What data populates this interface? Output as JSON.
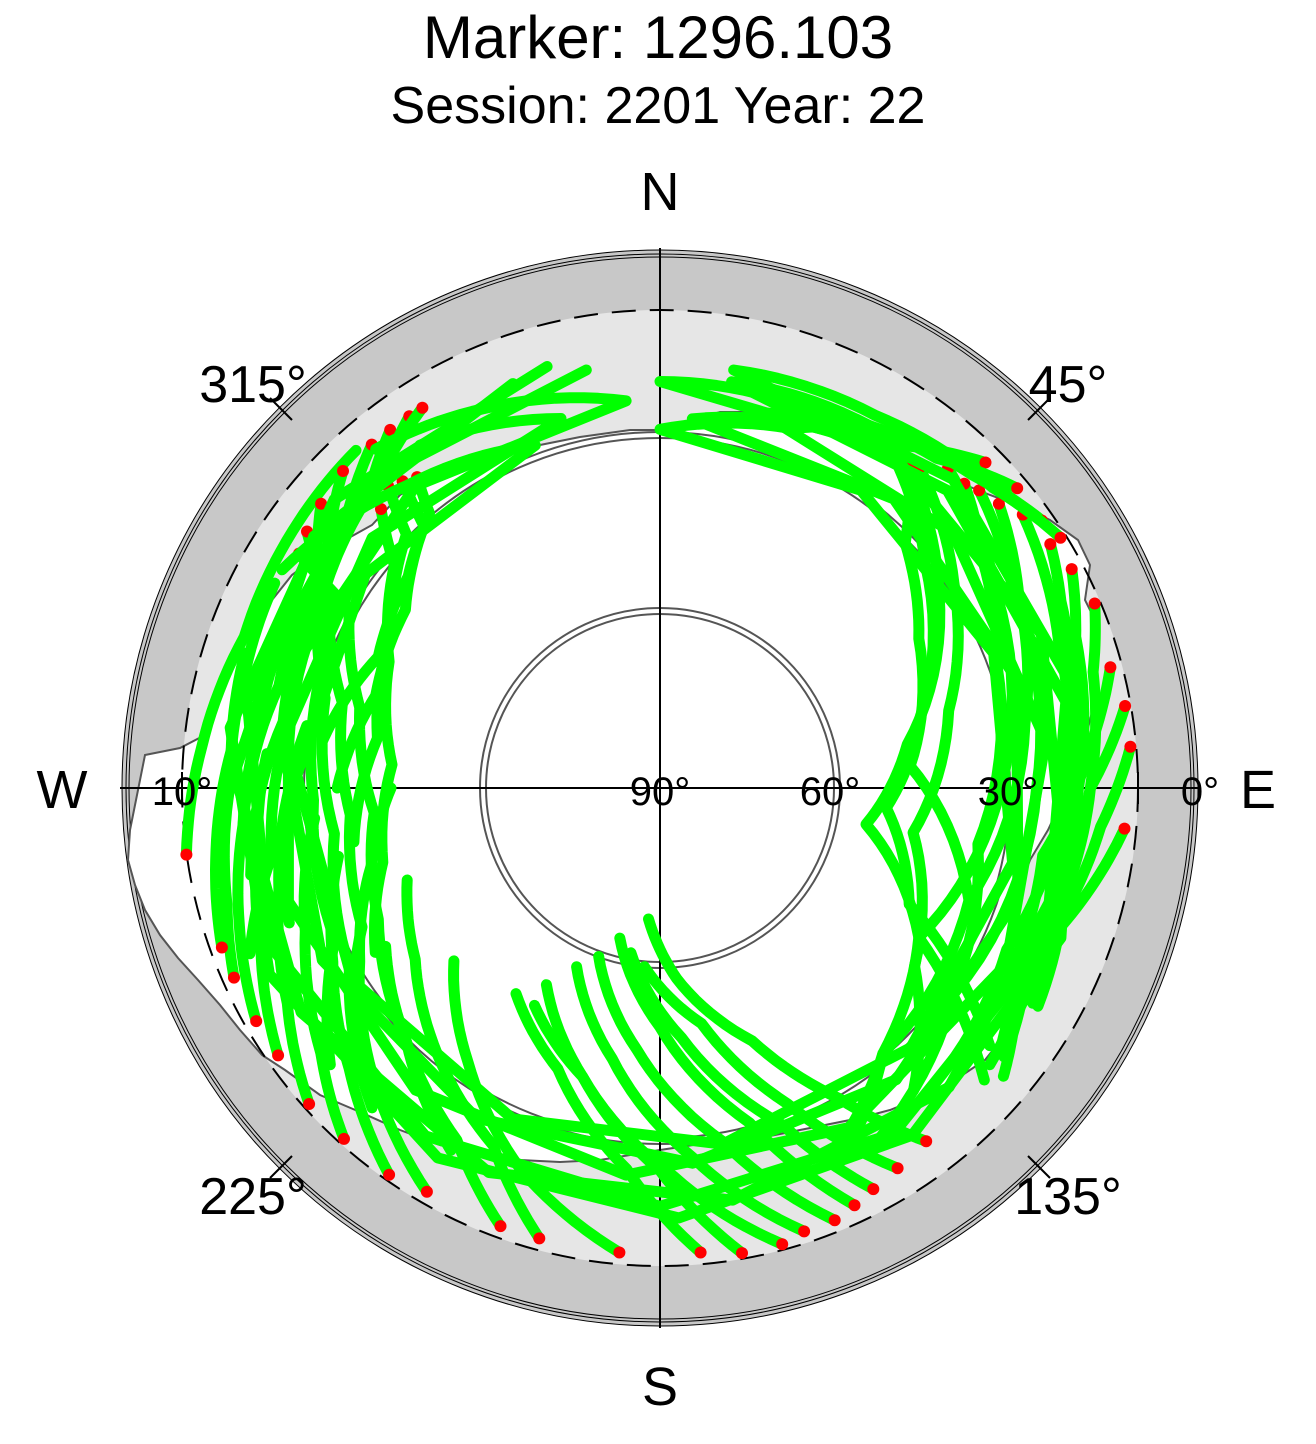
{
  "title": "Marker: 1296.103",
  "subtitle": "Session: 2201 Year: 22",
  "chart_data": {
    "type": "polar-sky-plot",
    "title": "Marker: 1296.103",
    "subtitle": "Session: 2201 Year: 22",
    "cardinals": {
      "north": "N",
      "east": "E",
      "south": "S",
      "west": "W"
    },
    "azimuth_ticks": [
      "45°",
      "135°",
      "225°",
      "315°"
    ],
    "elevation_ticks": [
      "10°",
      "90°",
      "60°",
      "30°",
      "0°"
    ],
    "elevation_range": [
      0,
      90
    ],
    "elevation_mask_deg": 10,
    "colors": {
      "track": "#00ff00",
      "track_endpoint": "#ff0000",
      "outer_ring": "#c8c8c8",
      "obstruction_area": "#e6e6e6",
      "open_sky": "#ffffff"
    },
    "elevation_circles_shown": [
      10,
      30,
      60
    ],
    "tracks": [
      {
        "az": [
          35,
          50,
          75,
          95,
          115,
          128
        ],
        "el": [
          22,
          32,
          45,
          52,
          44,
          20
        ]
      },
      {
        "az": [
          36,
          55,
          80,
          100,
          120,
          132
        ],
        "el": [
          21,
          33,
          48,
          55,
          40,
          17
        ]
      },
      {
        "az": [
          38,
          45,
          60,
          85,
          110
        ],
        "el": [
          22,
          32,
          40,
          48,
          35
        ]
      },
      {
        "az": [
          39,
          55,
          75,
          100,
          125,
          140
        ],
        "el": [
          21,
          30,
          40,
          47,
          38,
          24
        ]
      },
      {
        "az": [
          42,
          60,
          90,
          120,
          140,
          155
        ],
        "el": [
          18,
          25,
          33,
          40,
          32,
          20
        ]
      },
      {
        "az": [
          45,
          55,
          70,
          100,
          135
        ],
        "el": [
          18,
          24,
          30,
          36,
          28
        ]
      },
      {
        "az": [
          47,
          60,
          90,
          125,
          150
        ],
        "el": [
          17,
          22,
          27,
          30,
          20
        ]
      },
      {
        "az": [
          50,
          62,
          80,
          110,
          140,
          155
        ],
        "el": [
          16,
          22,
          28,
          35,
          32,
          22
        ]
      },
      {
        "az": [
          53,
          70,
          90,
          115,
          140
        ],
        "el": [
          14,
          19,
          22,
          26,
          22
        ]
      },
      {
        "az": [
          58,
          65,
          80,
          100,
          125
        ],
        "el": [
          13,
          16,
          20,
          22,
          19
        ]
      },
      {
        "az": [
          62,
          70,
          90,
          110,
          130
        ],
        "el": [
          12,
          16,
          20,
          22,
          18
        ]
      },
      {
        "az": [
          67,
          75,
          90,
          105,
          120
        ],
        "el": [
          11,
          15,
          18,
          20,
          17
        ]
      },
      {
        "az": [
          75,
          85,
          100,
          115,
          128
        ],
        "el": [
          12,
          18,
          25,
          24,
          17
        ]
      },
      {
        "az": [
          80,
          90,
          105,
          120,
          128
        ],
        "el": [
          11,
          18,
          22,
          22,
          18
        ]
      },
      {
        "az": [
          85,
          95,
          110,
          120
        ],
        "el": [
          11,
          16,
          20,
          18
        ]
      },
      {
        "az": [
          95,
          105,
          115,
          125,
          130
        ],
        "el": [
          12,
          17,
          22,
          18,
          15
        ]
      },
      {
        "az": [
          143,
          150,
          160,
          175,
          185
        ],
        "el": [
          16,
          30,
          45,
          58,
          68
        ]
      },
      {
        "az": [
          148,
          158,
          170,
          185
        ],
        "el": [
          15,
          33,
          50,
          60
        ]
      },
      {
        "az": [
          152,
          160,
          175,
          190
        ],
        "el": [
          14,
          30,
          48,
          62
        ]
      },
      {
        "az": [
          155,
          165,
          180,
          195
        ],
        "el": [
          13,
          32,
          50,
          64
        ]
      },
      {
        "az": [
          158,
          170,
          185,
          200
        ],
        "el": [
          12,
          30,
          46,
          60
        ]
      },
      {
        "az": [
          162,
          175,
          190,
          205
        ],
        "el": [
          12,
          28,
          44,
          57
        ]
      },
      {
        "az": [
          165,
          178,
          195,
          210
        ],
        "el": [
          11,
          25,
          40,
          52
        ]
      },
      {
        "az": [
          170,
          180,
          195,
          210
        ],
        "el": [
          11,
          26,
          40,
          48
        ]
      },
      {
        "az": [
          175,
          185,
          200,
          215
        ],
        "el": [
          12,
          26,
          40,
          48
        ]
      },
      {
        "az": [
          185,
          200,
          215,
          230
        ],
        "el": [
          12,
          22,
          34,
          45
        ]
      },
      {
        "az": [
          195,
          205,
          220,
          235,
          250
        ],
        "el": [
          12,
          24,
          32,
          40,
          45
        ]
      },
      {
        "az": [
          200,
          210,
          225,
          240
        ],
        "el": [
          12,
          22,
          30,
          37
        ]
      },
      {
        "az": [
          210,
          225,
          240,
          255,
          270
        ],
        "el": [
          12,
          22,
          32,
          40,
          45
        ]
      },
      {
        "az": [
          215,
          228,
          242,
          258
        ],
        "el": [
          11,
          20,
          28,
          35
        ]
      },
      {
        "az": [
          222,
          232,
          248,
          265
        ],
        "el": [
          11,
          18,
          26,
          32
        ]
      },
      {
        "az": [
          228,
          240,
          255,
          270,
          280
        ],
        "el": [
          11,
          18,
          24,
          28,
          30
        ]
      },
      {
        "az": [
          235,
          248,
          262,
          275
        ],
        "el": [
          12,
          18,
          22,
          24
        ]
      },
      {
        "az": [
          240,
          252,
          265,
          278,
          290
        ],
        "el": [
          12,
          16,
          20,
          22,
          22
        ]
      },
      {
        "az": [
          246,
          255,
          270,
          285,
          298
        ],
        "el": [
          12,
          15,
          18,
          18,
          17
        ]
      },
      {
        "az": [
          250,
          262,
          275,
          288
        ],
        "el": [
          12,
          15,
          18,
          17
        ]
      },
      {
        "az": [
          262,
          275,
          290,
          305,
          318
        ],
        "el": [
          10,
          13,
          16,
          15,
          14
        ]
      },
      {
        "az": [
          303,
          300,
          285,
          265,
          245,
          225,
          210
        ],
        "el": [
          18,
          30,
          38,
          42,
          38,
          30,
          20
        ]
      },
      {
        "az": [
          306,
          300,
          285,
          265,
          245,
          228
        ],
        "el": [
          17,
          26,
          35,
          38,
          35,
          22
        ]
      },
      {
        "az": [
          310,
          300,
          285,
          262,
          240,
          222
        ],
        "el": [
          16,
          24,
          32,
          35,
          30,
          18
        ]
      },
      {
        "az": [
          315,
          305,
          290,
          268,
          245,
          230
        ],
        "el": [
          15,
          22,
          30,
          32,
          30,
          18
        ]
      },
      {
        "az": [
          320,
          312,
          295,
          270,
          250
        ],
        "el": [
          15,
          20,
          26,
          28,
          24
        ]
      },
      {
        "az": [
          323,
          315,
          300,
          280,
          260,
          248
        ],
        "el": [
          15,
          21,
          25,
          27,
          24,
          16
        ]
      },
      {
        "az": [
          326,
          320,
          300,
          280,
          258
        ],
        "el": [
          15,
          19,
          24,
          26,
          20
        ]
      },
      {
        "az": [
          328,
          322,
          305,
          285,
          265
        ],
        "el": [
          15,
          18,
          22,
          24,
          20
        ]
      },
      {
        "az": [
          315,
          310,
          295,
          275,
          255,
          240
        ],
        "el": [
          24,
          32,
          40,
          45,
          42,
          35
        ]
      },
      {
        "az": [
          318,
          315,
          300,
          280,
          260
        ],
        "el": [
          22,
          30,
          38,
          42,
          38
        ]
      },
      {
        "az": [
          320,
          318,
          305,
          288,
          270
        ],
        "el": [
          23,
          31,
          38,
          40,
          36
        ]
      },
      {
        "az": [
          322,
          320,
          310,
          295,
          278
        ],
        "el": [
          24,
          30,
          35,
          38,
          33
        ]
      },
      {
        "az": [
          33,
          20,
          0,
          340,
          320,
          300
        ],
        "el": [
          19,
          26,
          30,
          29,
          24,
          17
        ]
      },
      {
        "az": [
          37,
          25,
          5,
          345,
          325
        ],
        "el": [
          17,
          24,
          28,
          26,
          20
        ]
      },
      {
        "az": [
          45,
          35,
          15,
          355,
          335,
          320
        ],
        "el": [
          13,
          20,
          25,
          25,
          20,
          16
        ]
      },
      {
        "az": [
          50,
          40,
          20,
          0,
          340
        ],
        "el": [
          12,
          18,
          22,
          22,
          18
        ]
      },
      {
        "az": [
          55,
          45,
          30,
          10,
          350
        ],
        "el": [
          12,
          16,
          20,
          21,
          19
        ]
      },
      {
        "az": [
          58,
          48,
          30,
          10,
          345
        ],
        "el": [
          11,
          15,
          18,
          19,
          17
        ]
      }
    ]
  }
}
